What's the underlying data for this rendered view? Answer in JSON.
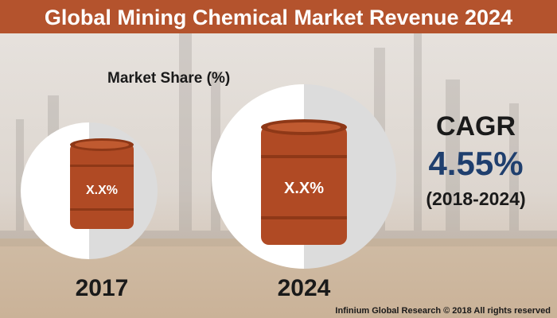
{
  "header": {
    "title": "Global Mining Chemical Market Revenue 2024"
  },
  "subtitle": "Market Share (%)",
  "barrels": [
    {
      "label": "X.X%",
      "year": "2017"
    },
    {
      "label": "X.X%",
      "year": "2024"
    }
  ],
  "cagr": {
    "label": "CAGR",
    "value": "4.55%",
    "period": "(2018-2024)"
  },
  "footer": "Infinium Global Research © 2018 All rights reserved"
}
